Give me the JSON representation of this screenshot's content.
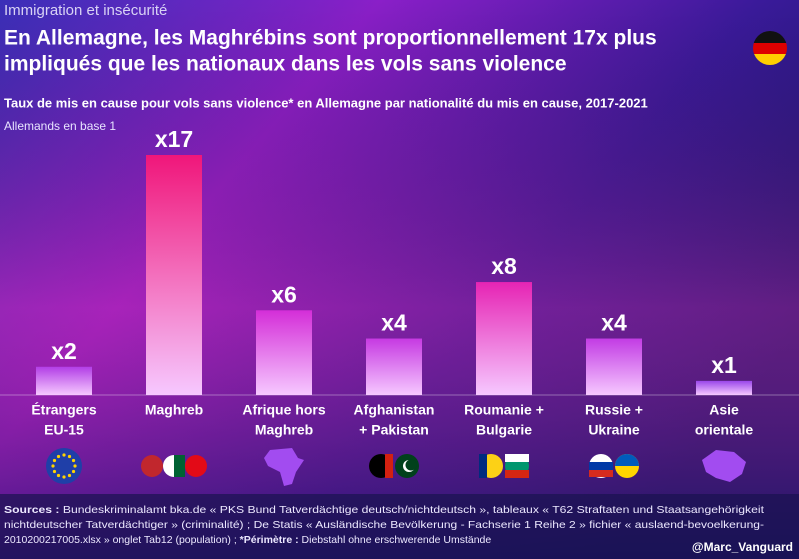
{
  "chart_data": {
    "type": "bar",
    "kicker": "Immigration et insécurité",
    "title": [
      "En Allemagne, les Maghrébins sont proportionnellement 17x plus",
      "impliqués que les nationaux dans les vols sans violence"
    ],
    "subtitle": "Taux de mis en cause pour vols sans violence* en Allemagne par nationalité du mis en cause, 2017-2021",
    "note": "Allemands en base 1",
    "categories": [
      [
        "Étrangers",
        "EU-15"
      ],
      [
        "Maghreb"
      ],
      [
        "Afrique hors",
        "Maghreb"
      ],
      [
        "Afghanistan",
        "+ Pakistan"
      ],
      [
        "Roumanie +",
        "Bulgarie"
      ],
      [
        "Russie +",
        "Ukraine"
      ],
      [
        "Asie",
        "orientale"
      ]
    ],
    "values": [
      2,
      17,
      6,
      4,
      8,
      4,
      1
    ],
    "value_labels": [
      "x2",
      "x17",
      "x6",
      "x4",
      "x8",
      "x4",
      "x1"
    ],
    "colors": [
      "#b23ee6",
      "#f0167a",
      "#d42ed8",
      "#c63ae2",
      "#e624b4",
      "#c23ce4",
      "#9a46ea"
    ],
    "ylim": [
      0,
      17
    ],
    "sources": [
      [
        {
          "text": "Sources :",
          "bold": true
        },
        {
          "text": " Bundeskriminalamt bka.de « PKS Bund Tatverdächtige deutsch/nichtdeutsch », tableaux « T62 Straftaten und Staatsangehörigkeit",
          "bold": false
        }
      ],
      [
        {
          "text": "nichtdeutscher Tatverdächtiger » (criminalité) ; De Statis « Ausländische Bevölkerung - Fachserie 1 Reihe 2 » fichier « auslaend-bevoelkerung-",
          "bold": false
        }
      ],
      [
        {
          "text": "2010200217005.xlsx » onglet Tab12 (population) ; ",
          "bold": false
        },
        {
          "text": "*Périmètre :",
          "bold": true
        },
        {
          "text": " Diebstahl ohne erschwerende Umstände",
          "bold": false
        }
      ]
    ],
    "author": "@Marc_Vanguard"
  }
}
